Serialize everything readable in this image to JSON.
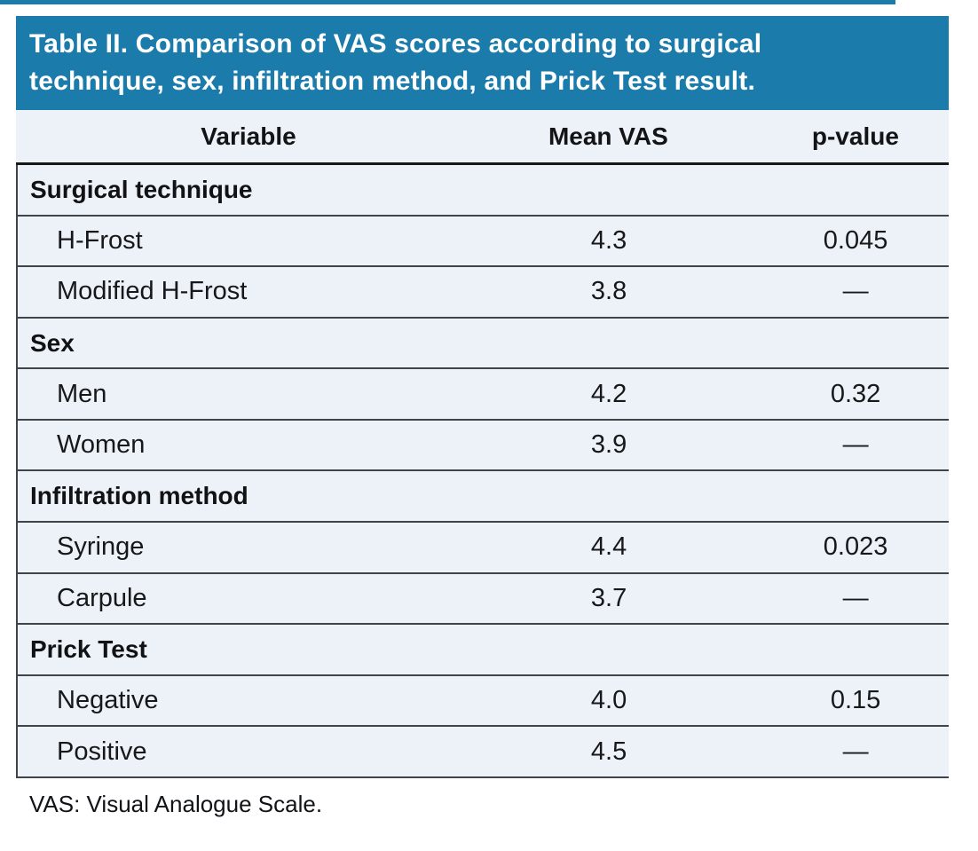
{
  "page": {
    "background_color": "#ffffff",
    "accent_color": "#1b7cab"
  },
  "table": {
    "title": "Table II. Comparison of VAS scores according to surgical technique, sex, infiltration method, and Prick Test result.",
    "title_lines": [
      "Table II. Comparison of VAS scores according to surgical",
      "technique, sex, infiltration method, and Prick Test result."
    ],
    "columns": [
      "Variable",
      "Mean VAS",
      "p-value"
    ],
    "sections": [
      {
        "label": "Surgical technique",
        "rows": [
          {
            "variable": "H-Frost",
            "mean_vas": "4.3",
            "p_value": "0.045"
          },
          {
            "variable": "Modified H-Frost",
            "mean_vas": "3.8",
            "p_value": "—"
          }
        ]
      },
      {
        "label": "Sex",
        "rows": [
          {
            "variable": "Men",
            "mean_vas": "4.2",
            "p_value": "0.32"
          },
          {
            "variable": "Women",
            "mean_vas": "3.9",
            "p_value": "—"
          }
        ]
      },
      {
        "label": "Infiltration method",
        "rows": [
          {
            "variable": "Syringe",
            "mean_vas": "4.4",
            "p_value": "0.023"
          },
          {
            "variable": "Carpule",
            "mean_vas": "3.7",
            "p_value": "—"
          }
        ]
      },
      {
        "label": "Prick Test",
        "rows": [
          {
            "variable": "Negative",
            "mean_vas": "4.0",
            "p_value": "0.15"
          },
          {
            "variable": "Positive",
            "mean_vas": "4.5",
            "p_value": "—"
          }
        ]
      }
    ],
    "footnote": "VAS: Visual Analogue Scale.",
    "colors": {
      "title_bg": "#1b7cab",
      "row_bg": "#edf1f8",
      "rule_line": "#3f444b",
      "header_underline": "#17181a",
      "text": "#16181a"
    }
  }
}
